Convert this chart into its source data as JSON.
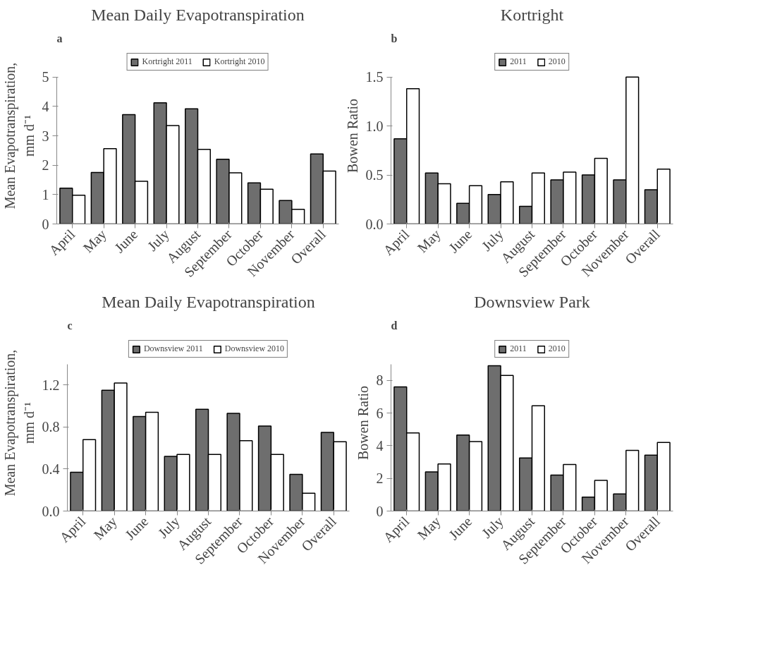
{
  "chart_data": [
    {
      "type": "bar",
      "title": "Mean Daily Evapotranspiration",
      "ylabel": "Mean Evapotranspiration,\nmm d⁻¹",
      "annotations": [
        "a"
      ],
      "categories": [
        "April",
        "May",
        "June",
        "July",
        "August",
        "September",
        "October",
        "November",
        "Overall"
      ],
      "series": [
        {
          "name": "Kortright 2011",
          "color": "#6e6e6e",
          "values": [
            1.22,
            1.75,
            3.72,
            4.12,
            3.92,
            2.2,
            1.4,
            0.8,
            2.38
          ]
        },
        {
          "name": "Kortright 2010",
          "color": "#ffffff",
          "values": [
            0.98,
            2.56,
            1.45,
            3.35,
            2.54,
            1.74,
            1.18,
            0.5,
            1.8
          ]
        }
      ],
      "ylim": [
        0,
        5
      ],
      "yticks": [
        0,
        1,
        2,
        3,
        4,
        5
      ],
      "grid": false,
      "legend": "top"
    },
    {
      "type": "bar",
      "title": "Kortright",
      "ylabel": "Bowen Ratio",
      "annotations": [
        "b"
      ],
      "categories": [
        "April",
        "May",
        "June",
        "July",
        "August",
        "September",
        "October",
        "November",
        "Overall"
      ],
      "series": [
        {
          "name": "2011",
          "color": "#6e6e6e",
          "values": [
            0.87,
            0.52,
            0.21,
            0.3,
            0.18,
            0.45,
            0.5,
            0.45,
            0.35
          ]
        },
        {
          "name": "2010",
          "color": "#ffffff",
          "values": [
            1.38,
            0.41,
            0.39,
            0.43,
            0.52,
            0.53,
            0.67,
            1.5,
            0.56
          ]
        }
      ],
      "ylim": [
        0,
        1.5
      ],
      "yticks": [
        {
          "value": 0,
          "label": "0.0"
        },
        {
          "value": 0.5,
          "label": "0.5"
        },
        {
          "value": 1,
          "label": "1.0"
        },
        {
          "value": 1.5,
          "label": "1.5"
        }
      ],
      "grid": false,
      "legend": "top"
    },
    {
      "type": "bar",
      "title": "Mean Daily Evapotranspiration",
      "ylabel": "Mean Evapotranspiration,\nmm d⁻¹",
      "annotations": [
        "c"
      ],
      "categories": [
        "April",
        "May",
        "June",
        "July",
        "August",
        "September",
        "October",
        "November",
        "Overall"
      ],
      "series": [
        {
          "name": "Downsview 2011",
          "color": "#6e6e6e",
          "values": [
            0.37,
            1.15,
            0.9,
            0.52,
            0.97,
            0.93,
            0.81,
            0.35,
            0.75
          ]
        },
        {
          "name": "Downsview 2010",
          "color": "#ffffff",
          "values": [
            0.68,
            1.22,
            0.94,
            0.54,
            0.54,
            0.67,
            0.54,
            0.17,
            0.66
          ]
        }
      ],
      "ylim": [
        0,
        1.4
      ],
      "yticks": [
        {
          "value": 0,
          "label": "0.0"
        },
        {
          "value": 0.4,
          "label": "0.4"
        },
        {
          "value": 0.8,
          "label": "0.8"
        },
        {
          "value": 1.2,
          "label": "1.2"
        }
      ],
      "grid": false,
      "legend": "top"
    },
    {
      "type": "bar",
      "title": "Downsview Park",
      "ylabel": "Bowen Ratio",
      "annotations": [
        "d"
      ],
      "categories": [
        "April",
        "May",
        "June",
        "July",
        "August",
        "September",
        "October",
        "November",
        "Overall"
      ],
      "series": [
        {
          "name": "2011",
          "color": "#6e6e6e",
          "values": [
            7.6,
            2.4,
            4.65,
            8.9,
            3.25,
            2.2,
            0.85,
            1.05,
            3.42
          ]
        },
        {
          "name": "2010",
          "color": "#ffffff",
          "values": [
            4.78,
            2.88,
            4.25,
            8.3,
            6.45,
            2.85,
            1.88,
            3.72,
            4.2
          ]
        }
      ],
      "ylim": [
        0,
        9
      ],
      "yticks": [
        0,
        2,
        4,
        6,
        8
      ],
      "grid": false,
      "legend": "top"
    }
  ]
}
